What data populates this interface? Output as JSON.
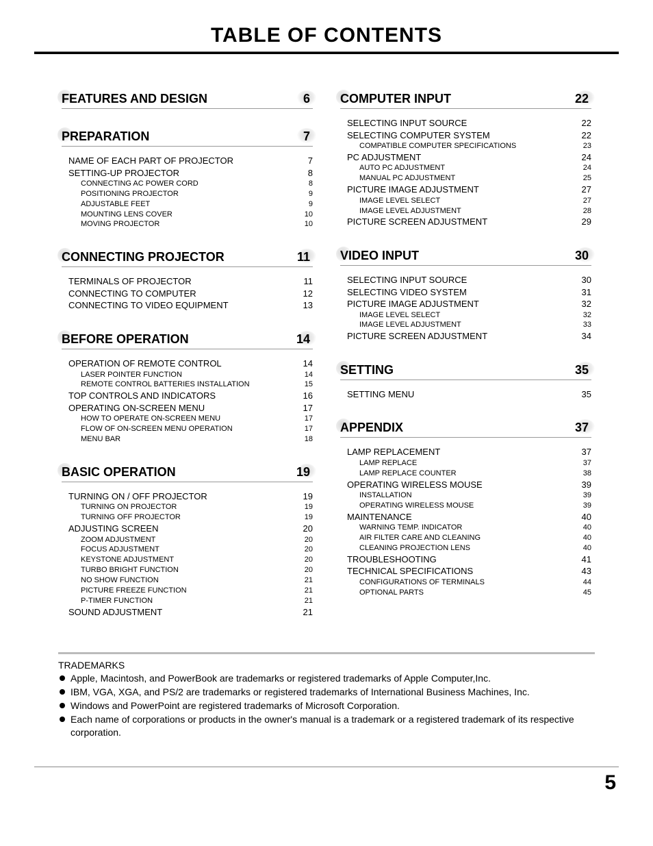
{
  "title": "TABLE OF CONTENTS",
  "page_number": "5",
  "trademarks_heading": "TRADEMARKS",
  "trademarks": [
    "Apple, Macintosh, and PowerBook are trademarks or registered trademarks of Apple Computer,Inc.",
    "IBM, VGA, XGA, and PS/2 are trademarks or registered trademarks of International Business Machines, Inc.",
    "Windows and PowerPoint are registered trademarks of Microsoft Corporation.",
    "Each name of corporations or products in the owner's manual is a trademark or a registered trademark of its respective corporation."
  ],
  "left": [
    {
      "title": "FEATURES AND DESIGN",
      "page": "6",
      "items": []
    },
    {
      "title": "PREPARATION",
      "page": "7",
      "items": [
        {
          "label": "NAME OF EACH PART OF PROJECTOR",
          "page": "7"
        },
        {
          "label": "SETTING-UP PROJECTOR",
          "page": "8"
        },
        {
          "label": "CONNECTING AC POWER CORD",
          "page": "8",
          "sub": true
        },
        {
          "label": "POSITIONING PROJECTOR",
          "page": "9",
          "sub": true
        },
        {
          "label": "ADJUSTABLE FEET",
          "page": "9",
          "sub": true
        },
        {
          "label": "MOUNTING LENS COVER",
          "page": "10",
          "sub": true
        },
        {
          "label": "MOVING PROJECTOR",
          "page": "10",
          "sub": true
        }
      ]
    },
    {
      "title": "CONNECTING PROJECTOR",
      "page": "11",
      "items": [
        {
          "label": "TERMINALS OF PROJECTOR",
          "page": "11"
        },
        {
          "label": "CONNECTING TO COMPUTER",
          "page": "12"
        },
        {
          "label": "CONNECTING TO VIDEO EQUIPMENT",
          "page": "13"
        }
      ]
    },
    {
      "title": "BEFORE OPERATION",
      "page": "14",
      "items": [
        {
          "label": "OPERATION OF REMOTE CONTROL",
          "page": "14"
        },
        {
          "label": "LASER POINTER FUNCTION",
          "page": "14",
          "sub": true
        },
        {
          "label": "REMOTE CONTROL BATTERIES INSTALLATION",
          "page": "15",
          "sub": true
        },
        {
          "label": "TOP CONTROLS AND INDICATORS",
          "page": "16"
        },
        {
          "label": "OPERATING ON-SCREEN MENU",
          "page": "17"
        },
        {
          "label": "HOW TO OPERATE ON-SCREEN MENU",
          "page": "17",
          "sub": true
        },
        {
          "label": "FLOW OF ON-SCREEN MENU OPERATION",
          "page": "17",
          "sub": true
        },
        {
          "label": "MENU BAR",
          "page": "18",
          "sub": true
        }
      ]
    },
    {
      "title": "BASIC OPERATION",
      "page": "19",
      "items": [
        {
          "label": "TURNING ON / OFF PROJECTOR",
          "page": "19"
        },
        {
          "label": "TURNING ON PROJECTOR",
          "page": "19",
          "sub": true
        },
        {
          "label": "TURNING OFF PROJECTOR",
          "page": "19",
          "sub": true
        },
        {
          "label": "ADJUSTING SCREEN",
          "page": "20"
        },
        {
          "label": "ZOOM ADJUSTMENT",
          "page": "20",
          "sub": true
        },
        {
          "label": "FOCUS ADJUSTMENT",
          "page": "20",
          "sub": true
        },
        {
          "label": "KEYSTONE ADJUSTMENT",
          "page": "20",
          "sub": true
        },
        {
          "label": "TURBO BRIGHT FUNCTION",
          "page": "20",
          "sub": true
        },
        {
          "label": "NO SHOW FUNCTION",
          "page": "21",
          "sub": true
        },
        {
          "label": "PICTURE FREEZE FUNCTION",
          "page": "21",
          "sub": true
        },
        {
          "label": "P-TIMER FUNCTION",
          "page": "21",
          "sub": true
        },
        {
          "label": "SOUND ADJUSTMENT",
          "page": "21"
        }
      ]
    }
  ],
  "right": [
    {
      "title": "COMPUTER INPUT",
      "page": "22",
      "items": [
        {
          "label": "SELECTING INPUT SOURCE",
          "page": "22"
        },
        {
          "label": "SELECTING COMPUTER SYSTEM",
          "page": "22"
        },
        {
          "label": "COMPATIBLE COMPUTER SPECIFICATIONS",
          "page": "23",
          "sub": true
        },
        {
          "label": "PC ADJUSTMENT",
          "page": "24"
        },
        {
          "label": "AUTO PC ADJUSTMENT",
          "page": "24",
          "sub": true
        },
        {
          "label": "MANUAL PC ADJUSTMENT",
          "page": "25",
          "sub": true
        },
        {
          "label": "PICTURE IMAGE ADJUSTMENT",
          "page": "27"
        },
        {
          "label": "IMAGE LEVEL SELECT",
          "page": "27",
          "sub": true
        },
        {
          "label": "IMAGE LEVEL ADJUSTMENT",
          "page": "28",
          "sub": true
        },
        {
          "label": "PICTURE SCREEN ADJUSTMENT",
          "page": "29"
        }
      ]
    },
    {
      "title": "VIDEO INPUT",
      "page": "30",
      "items": [
        {
          "label": "SELECTING INPUT SOURCE",
          "page": "30"
        },
        {
          "label": "SELECTING VIDEO SYSTEM",
          "page": "31"
        },
        {
          "label": "PICTURE IMAGE ADJUSTMENT",
          "page": "32"
        },
        {
          "label": "IMAGE LEVEL SELECT",
          "page": "32",
          "sub": true
        },
        {
          "label": "IMAGE LEVEL ADJUSTMENT",
          "page": "33",
          "sub": true
        },
        {
          "label": "PICTURE SCREEN ADJUSTMENT",
          "page": "34"
        }
      ]
    },
    {
      "title": "SETTING",
      "page": "35",
      "items": [
        {
          "label": "SETTING MENU",
          "page": "35"
        }
      ]
    },
    {
      "title": "APPENDIX",
      "page": "37",
      "items": [
        {
          "label": "LAMP REPLACEMENT",
          "page": "37"
        },
        {
          "label": "LAMP REPLACE",
          "page": "37",
          "sub": true
        },
        {
          "label": "LAMP REPLACE COUNTER",
          "page": "38",
          "sub": true
        },
        {
          "label": "OPERATING WIRELESS MOUSE",
          "page": "39"
        },
        {
          "label": "INSTALLATION",
          "page": "39",
          "sub": true
        },
        {
          "label": "OPERATING WIRELESS MOUSE",
          "page": "39",
          "sub": true
        },
        {
          "label": "MAINTENANCE",
          "page": "40"
        },
        {
          "label": "WARNING TEMP. INDICATOR",
          "page": "40",
          "sub": true
        },
        {
          "label": "AIR FILTER CARE AND CLEANING",
          "page": "40",
          "sub": true
        },
        {
          "label": "CLEANING PROJECTION LENS",
          "page": "40",
          "sub": true
        },
        {
          "label": "TROUBLESHOOTING",
          "page": "41"
        },
        {
          "label": "TECHNICAL SPECIFICATIONS",
          "page": "43"
        },
        {
          "label": "CONFIGURATIONS OF TERMINALS",
          "page": "44",
          "sub": true
        },
        {
          "label": "OPTIONAL PARTS",
          "page": "45",
          "sub": true
        }
      ]
    }
  ]
}
